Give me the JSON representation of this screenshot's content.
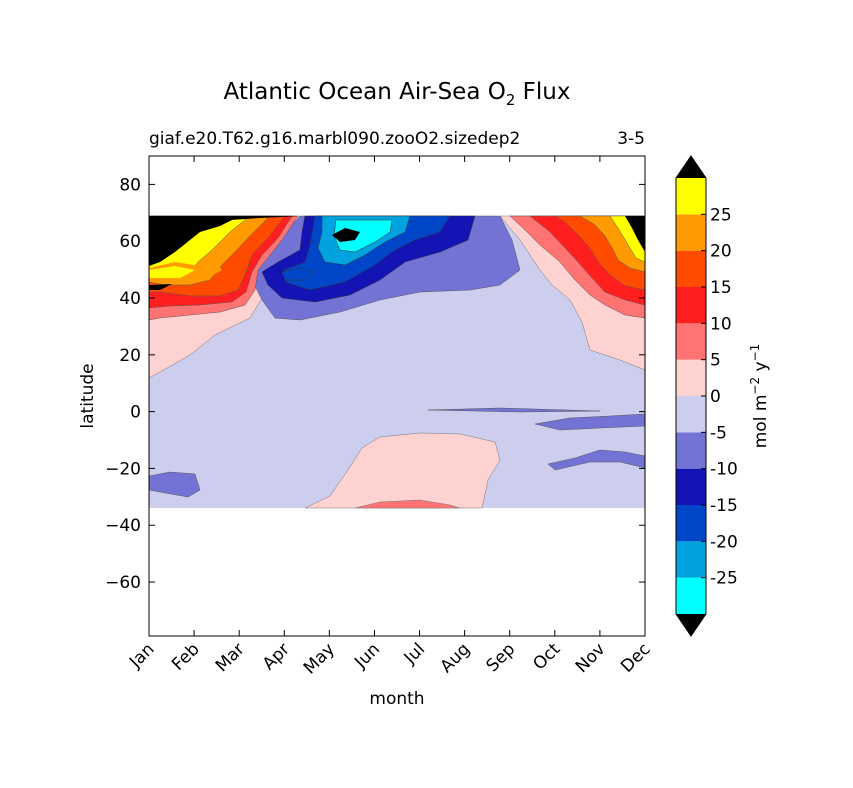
{
  "chart_data": {
    "type": "filled-contour",
    "title": {
      "main": "Atlantic Ocean Air-Sea O",
      "sub": "2",
      "tail": " Flux"
    },
    "subtitle_left": "giaf.e20.T62.g16.marbl090.zooO2.sizedep2",
    "subtitle_right": "3-5",
    "xlabel": "month",
    "ylabel": "latitude",
    "x_categories": [
      "Jan",
      "Feb",
      "Mar",
      "Apr",
      "May",
      "Jun",
      "Jul",
      "Aug",
      "Sep",
      "Oct",
      "Nov",
      "Dec"
    ],
    "yticks": [
      80,
      60,
      40,
      20,
      0,
      -20,
      -40,
      -60
    ],
    "ylim": [
      -79,
      90
    ],
    "data_lat_range": [
      -34,
      69
    ],
    "colorbar": {
      "label_main": "mol m",
      "label_exp1": "−2",
      "label_mid": "  y",
      "label_exp2": "−1",
      "ticks": [
        25,
        20,
        15,
        10,
        5,
        0,
        -5,
        -10,
        -15,
        -20,
        -25
      ],
      "levels": [
        -30,
        -25,
        -20,
        -15,
        -10,
        -5,
        0,
        5,
        10,
        15,
        20,
        25,
        30
      ],
      "colors": [
        "#00ffff",
        "#00a3e0",
        "#0046c8",
        "#1414b4",
        "#7373d6",
        "#cdcdee",
        "#ffd2d2",
        "#ff7373",
        "#ff1f1f",
        "#ff4b00",
        "#ff9b00",
        "#ffff00"
      ],
      "extend_min_color": "#000000",
      "extend_max_color": "#000000"
    },
    "annotations": [
      "positive flux (outgassing, reds/yellows) at high northern latitudes Jan–Mar and Oct–Dec",
      "negative flux (ingassing, blues) at 40–69N from Apr to Aug, minimum below -25 near 60N in Jun",
      "weak positive flux band 20S–10S from Jun to Aug"
    ]
  }
}
